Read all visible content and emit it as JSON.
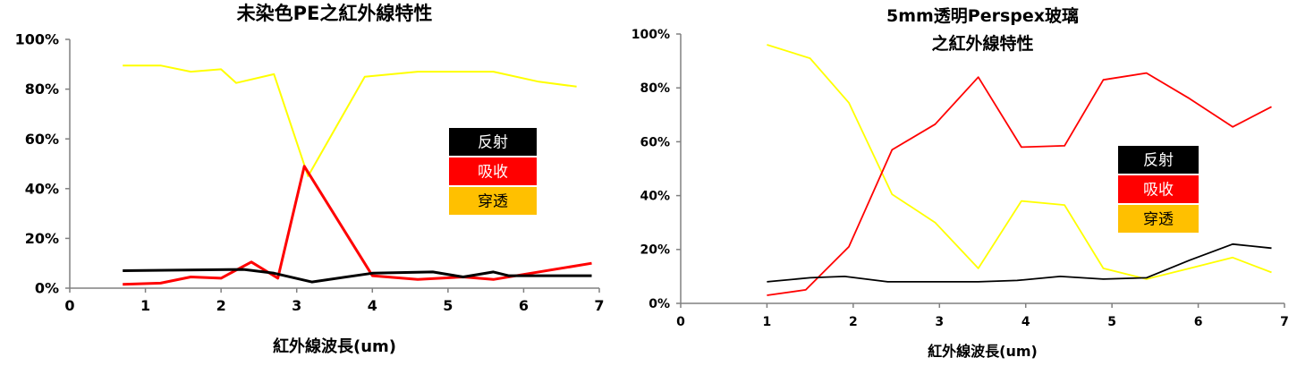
{
  "chart_data": [
    {
      "type": "line",
      "title": "未染色PE之紅外線特性",
      "xlabel": "紅外線波長(um)",
      "ylabel": "",
      "xlim": [
        0,
        7
      ],
      "ylim": [
        0,
        100
      ],
      "x_ticks": [
        "0",
        "1",
        "2",
        "3",
        "4",
        "5",
        "6",
        "7"
      ],
      "y_ticks": [
        "0%",
        "20%",
        "40%",
        "60%",
        "80%",
        "100%"
      ],
      "grid": false,
      "legend_position": "right-center",
      "legend": [
        {
          "label": "反射",
          "color": "#000000",
          "text_color": "#ffffff"
        },
        {
          "label": "吸收",
          "color": "#ff0000",
          "text_color": "#ffffff"
        },
        {
          "label": "穿透",
          "color": "#ffc000",
          "text_color": "#000000"
        }
      ],
      "series": [
        {
          "color": "#000000",
          "x": [
            0.7,
            2.3,
            2.7,
            3.2,
            4.0,
            4.8,
            5.2,
            5.6,
            5.8,
            6.9
          ],
          "y": [
            7,
            7.5,
            6,
            2.5,
            6,
            6.5,
            4.5,
            6.5,
            5,
            5
          ]
        },
        {
          "color": "#ff0000",
          "x": [
            0.7,
            1.2,
            1.6,
            2.0,
            2.4,
            2.75,
            3.1,
            4.0,
            4.6,
            5.2,
            5.6,
            6.0,
            6.9
          ],
          "y": [
            1.5,
            2,
            4.5,
            4,
            10.5,
            4,
            49,
            5,
            3.5,
            4.5,
            3.5,
            5.5,
            10
          ]
        },
        {
          "color": "#ffff00",
          "x": [
            0.7,
            1.2,
            1.6,
            2.0,
            2.2,
            2.7,
            3.15,
            3.9,
            4.6,
            5.2,
            5.6,
            6.2,
            6.7
          ],
          "y": [
            89.5,
            89.5,
            87,
            88,
            82.5,
            86,
            45,
            85,
            87,
            87,
            87,
            83,
            81
          ]
        }
      ]
    },
    {
      "type": "line",
      "title": "5mm透明Perspex玻璃",
      "subtitle": "之紅外線特性",
      "xlabel": "紅外線波長(um)",
      "ylabel": "",
      "xlim": [
        0,
        7
      ],
      "ylim": [
        0,
        100
      ],
      "x_ticks": [
        "0",
        "1",
        "2",
        "3",
        "4",
        "5",
        "6",
        "7"
      ],
      "y_ticks": [
        "0%",
        "20%",
        "40%",
        "60%",
        "80%",
        "100%"
      ],
      "grid": false,
      "legend_position": "right-center",
      "legend": [
        {
          "label": "反射",
          "color": "#000000",
          "text_color": "#ffffff"
        },
        {
          "label": "吸收",
          "color": "#ff0000",
          "text_color": "#ffffff"
        },
        {
          "label": "穿透",
          "color": "#ffc000",
          "text_color": "#000000"
        }
      ],
      "series": [
        {
          "color": "#000000",
          "x": [
            1.0,
            1.5,
            1.9,
            2.4,
            2.9,
            3.45,
            3.9,
            4.4,
            4.9,
            5.4,
            5.9,
            6.4,
            6.85
          ],
          "y": [
            8,
            9.5,
            10,
            8,
            8,
            8,
            8.5,
            10,
            9,
            9.5,
            16,
            22,
            20.5
          ]
        },
        {
          "color": "#ff0000",
          "x": [
            1.0,
            1.45,
            1.95,
            2.45,
            2.95,
            3.45,
            3.95,
            4.45,
            4.9,
            5.4,
            5.9,
            6.4,
            6.85
          ],
          "y": [
            3,
            5,
            21,
            57,
            66.5,
            84,
            58,
            58.5,
            83,
            85.5,
            76,
            65.5,
            73
          ]
        },
        {
          "color": "#ffff00",
          "x": [
            1.0,
            1.5,
            1.95,
            2.45,
            2.95,
            3.45,
            3.95,
            4.45,
            4.9,
            5.4,
            5.9,
            6.4,
            6.85
          ],
          "y": [
            96,
            91,
            74.5,
            40.5,
            30,
            13,
            38,
            36.5,
            13,
            9,
            13,
            17,
            11.5
          ]
        }
      ]
    }
  ]
}
